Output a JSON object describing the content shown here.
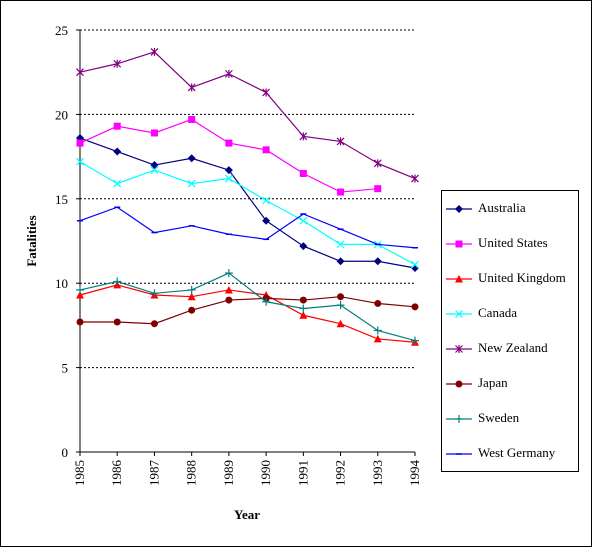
{
  "chart_data": {
    "type": "line",
    "title": "",
    "xlabel": "Year",
    "ylabel": "Fatalities",
    "categories": [
      "1985",
      "1986",
      "1987",
      "1988",
      "1989",
      "1990",
      "1991",
      "1992",
      "1993",
      "1994"
    ],
    "ylim": [
      0,
      25
    ],
    "yticks": [
      "0",
      "5",
      "10",
      "15",
      "20",
      "25"
    ],
    "grid": "horizontal dashed",
    "legend_position": "right",
    "series": [
      {
        "name": "Australia",
        "color": "#000080",
        "marker": "diamond",
        "values": [
          18.6,
          17.8,
          17.0,
          17.4,
          16.7,
          13.7,
          12.2,
          11.3,
          11.3,
          10.9
        ]
      },
      {
        "name": "United States",
        "color": "#ff00ff",
        "marker": "square",
        "values": [
          18.3,
          19.3,
          18.9,
          19.7,
          18.3,
          17.9,
          16.5,
          15.4,
          15.6,
          null
        ]
      },
      {
        "name": "United Kingdom",
        "color": "#ff0000",
        "marker": "triangle",
        "values": [
          9.3,
          9.9,
          9.3,
          9.2,
          9.6,
          9.3,
          8.1,
          7.6,
          6.7,
          6.5
        ]
      },
      {
        "name": "Canada",
        "color": "#00ffff",
        "marker": "x",
        "values": [
          17.2,
          15.9,
          16.7,
          15.9,
          16.2,
          14.9,
          13.7,
          12.3,
          12.3,
          11.1
        ]
      },
      {
        "name": "New Zealand",
        "color": "#800080",
        "marker": "star",
        "values": [
          22.5,
          23.0,
          23.7,
          21.6,
          22.4,
          21.3,
          18.7,
          18.4,
          17.1,
          16.2
        ]
      },
      {
        "name": "Japan",
        "color": "#800000",
        "marker": "circle",
        "values": [
          7.7,
          7.7,
          7.6,
          8.4,
          9.0,
          9.1,
          9.0,
          9.2,
          8.8,
          8.6
        ]
      },
      {
        "name": "Sweden",
        "color": "#008080",
        "marker": "plus",
        "values": [
          9.6,
          10.1,
          9.4,
          9.6,
          10.6,
          8.9,
          8.5,
          8.7,
          7.2,
          6.6
        ]
      },
      {
        "name": "West Germany",
        "color": "#0000ff",
        "marker": "dash",
        "values": [
          13.7,
          14.5,
          13.0,
          13.4,
          12.9,
          12.6,
          14.1,
          13.2,
          12.3,
          12.1
        ]
      }
    ]
  }
}
